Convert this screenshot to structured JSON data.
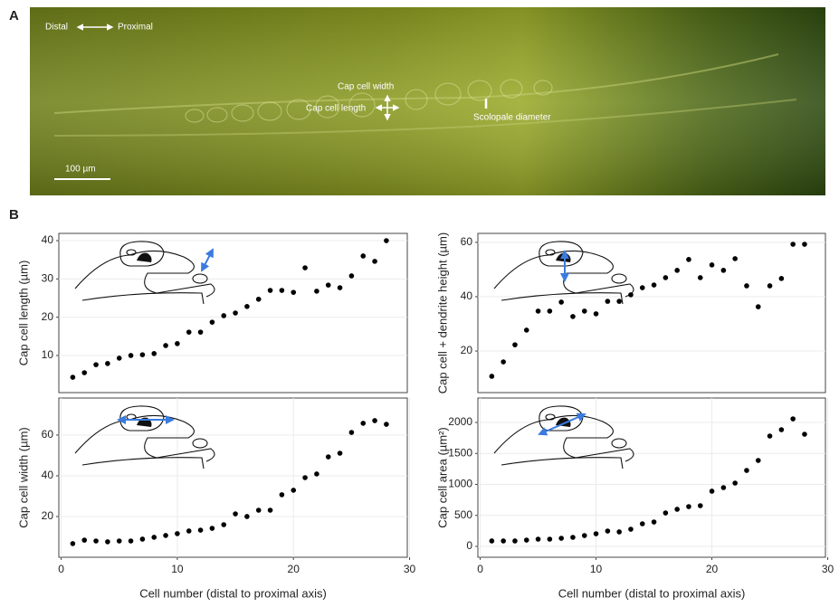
{
  "panel_labels": [
    "A",
    "B"
  ],
  "image": {
    "distal": "Distal",
    "proximal": "Proximal",
    "cap_cell_width": "Cap cell width",
    "cap_cell_length": "Cap cell length",
    "scolopale_diameter": "Scolopale diameter",
    "scale_bar": "100 µm"
  },
  "chart_data": [
    {
      "type": "scatter",
      "ylabel": "Cap cell length (µm)",
      "color": "#000000",
      "grid": true,
      "x": [
        1,
        2,
        3,
        4,
        5,
        6,
        7,
        8,
        9,
        10,
        11,
        12,
        13,
        14,
        15,
        16,
        17,
        18,
        19,
        20,
        21,
        22,
        23,
        24,
        25,
        26,
        27,
        28
      ],
      "values": [
        4.3,
        5.5,
        7.6,
        7.9,
        9.3,
        10,
        10.2,
        10.5,
        12.6,
        13.1,
        16.1,
        16.1,
        18.7,
        20.4,
        21.1,
        22.8,
        24.7,
        27,
        27,
        26.5,
        32.9,
        26.8,
        28.4,
        27.7,
        30.8,
        36,
        34.6,
        40
      ],
      "xlim": [
        -0.2,
        29.8
      ],
      "ylim": [
        0.3,
        41.9
      ],
      "yticks": [
        10,
        20,
        30,
        40
      ]
    },
    {
      "type": "scatter",
      "ylabel": "Cap cell + dendrite height (µm)",
      "color": "#000000",
      "grid": true,
      "x": [
        1,
        2,
        3,
        4,
        5,
        6,
        7,
        8,
        9,
        10,
        11,
        12,
        13,
        14,
        15,
        16,
        17,
        18,
        19,
        20,
        21,
        22,
        23,
        24,
        25,
        26,
        27,
        28
      ],
      "values": [
        10.7,
        16,
        22.3,
        27.7,
        34.7,
        34.7,
        38,
        32.7,
        34.7,
        33.7,
        38.3,
        38.3,
        40.7,
        43.3,
        44.3,
        47,
        49.7,
        53.7,
        47,
        51.7,
        49.7,
        54,
        44,
        36.3,
        44,
        46.7,
        59.3,
        59.3
      ],
      "xlim": [
        -0.2,
        29.8
      ],
      "ylim": [
        4.7,
        63.3
      ],
      "yticks": [
        20,
        40,
        60
      ]
    },
    {
      "type": "scatter",
      "ylabel": "Cap cell width (µm)",
      "xlabel": "Cell number (distal to proximal axis)",
      "color": "#000000",
      "grid": true,
      "x": [
        1,
        2,
        3,
        4,
        5,
        6,
        7,
        8,
        9,
        10,
        11,
        12,
        13,
        14,
        15,
        16,
        17,
        18,
        19,
        20,
        21,
        22,
        23,
        24,
        25,
        26,
        27,
        28
      ],
      "values": [
        6.7,
        8.4,
        8,
        7.6,
        8,
        8,
        8.9,
        9.8,
        10.7,
        11.6,
        12.9,
        13.3,
        14.2,
        16,
        21.3,
        20,
        23.1,
        23.1,
        30.7,
        32.9,
        39.1,
        40.9,
        49.3,
        51.1,
        61.3,
        65.8,
        67.1,
        65.3
      ],
      "xlim": [
        -0.2,
        29.8
      ],
      "xticks": [
        0,
        10,
        20,
        30
      ],
      "ylim": [
        0,
        78.2
      ],
      "yticks": [
        20,
        40,
        60
      ]
    },
    {
      "type": "scatter",
      "ylabel": "Cap cell area (µm²)",
      "xlabel": "Cell number (distal to proximal axis)",
      "color": "#000000",
      "grid": true,
      "x": [
        1,
        2,
        3,
        4,
        5,
        6,
        7,
        8,
        9,
        10,
        11,
        12,
        13,
        14,
        15,
        16,
        17,
        18,
        19,
        20,
        21,
        22,
        23,
        24,
        25,
        26,
        27,
        28
      ],
      "values": [
        88,
        88,
        88,
        102,
        117,
        117,
        131,
        146,
        175,
        204,
        248,
        234,
        277,
        365,
        394,
        540,
        599,
        642,
        657,
        891,
        949,
        1022,
        1226,
        1387,
        1781,
        1883,
        2058,
        1810
      ],
      "xlim": [
        -0.2,
        29.8
      ],
      "xticks": [
        0,
        10,
        20,
        30
      ],
      "ylim": [
        -175,
        2394
      ],
      "yticks": [
        0,
        500,
        1000,
        1500,
        2000
      ]
    }
  ]
}
